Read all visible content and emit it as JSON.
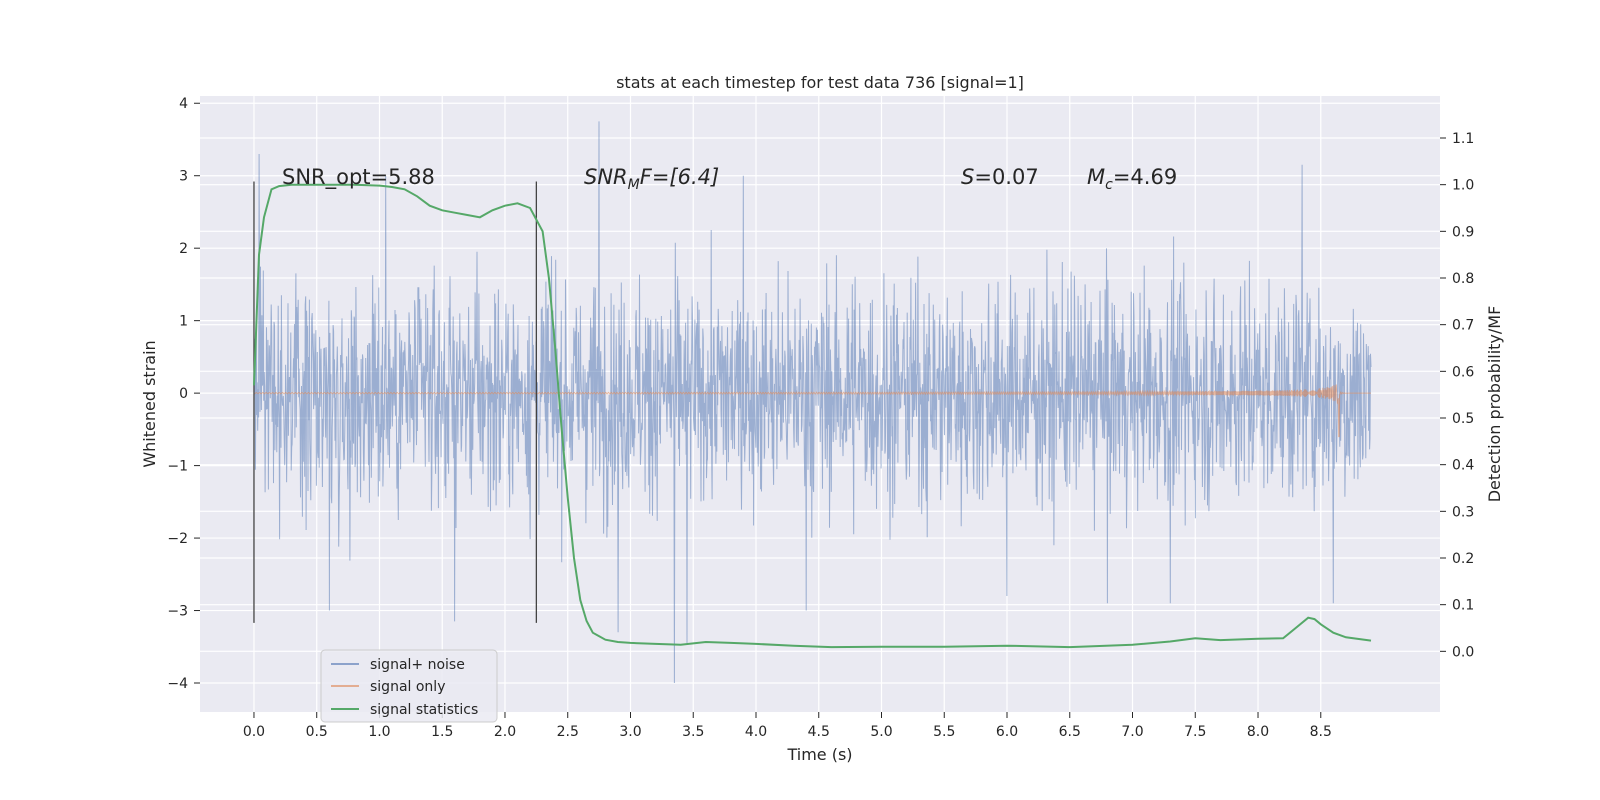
{
  "chart_data": {
    "type": "line",
    "title": "stats at each timestep for test data 736 [signal=1]",
    "xlabel": "Time (s)",
    "ylabel_left": "Whitened strain",
    "ylabel_right": "Detection probability/MF",
    "xlim": [
      -0.43,
      9.45
    ],
    "ylim_left": [
      -4.4,
      4.1
    ],
    "ylim_right": [
      -0.13,
      1.19
    ],
    "x_ticks": [
      0.0,
      0.5,
      1.0,
      1.5,
      2.0,
      2.5,
      3.0,
      3.5,
      4.0,
      4.5,
      5.0,
      5.5,
      6.0,
      6.5,
      7.0,
      7.5,
      8.0,
      8.5
    ],
    "x_tick_labels": [
      "0.0",
      "0.5",
      "1.0",
      "1.5",
      "2.0",
      "2.5",
      "3.0",
      "3.5",
      "4.0",
      "4.5",
      "5.0",
      "5.5",
      "6.0",
      "6.5",
      "7.0",
      "7.5",
      "8.0",
      "8.5"
    ],
    "y_left_ticks": [
      -4,
      -3,
      -2,
      -1,
      0,
      1,
      2,
      3,
      4
    ],
    "y_left_tick_labels": [
      "−4",
      "−3",
      "−2",
      "−1",
      "0",
      "1",
      "2",
      "3",
      "4"
    ],
    "y_right_ticks": [
      0.0,
      0.1,
      0.2,
      0.3,
      0.4,
      0.5,
      0.6,
      0.7,
      0.8,
      0.9,
      1.0,
      1.1
    ],
    "y_right_tick_labels": [
      "0.0",
      "0.1",
      "0.2",
      "0.3",
      "0.4",
      "0.5",
      "0.6",
      "0.7",
      "0.8",
      "0.9",
      "1.0",
      "1.1"
    ],
    "grid": true,
    "legend_position": "lower-left",
    "series": [
      {
        "name": "signal+ noise",
        "color": "#4c72b0",
        "style": "noise",
        "t_range": [
          0.0,
          8.9
        ],
        "sigma": 0.75,
        "envelope": [
          1.7,
          -1.8
        ],
        "spikes": [
          [
            0.04,
            3.3
          ],
          [
            0.6,
            -3.0
          ],
          [
            1.6,
            -3.15
          ],
          [
            2.75,
            3.75
          ],
          [
            3.35,
            -4.0
          ],
          [
            3.45,
            -3.45
          ],
          [
            2.9,
            -3.3
          ],
          [
            3.9,
            3.0
          ],
          [
            4.4,
            -3.0
          ],
          [
            6.0,
            -2.8
          ],
          [
            6.8,
            -2.9
          ],
          [
            8.35,
            3.15
          ],
          [
            8.6,
            -2.9
          ],
          [
            7.3,
            -2.9
          ],
          [
            1.05,
            3.0
          ]
        ]
      },
      {
        "name": "signal only",
        "color": "#dd8452",
        "style": "chirp",
        "t_range": [
          0.0,
          8.9
        ],
        "merger_time": 8.65,
        "peak_amplitude": 0.5,
        "min_amplitude": -0.6
      },
      {
        "name": "signal statistics",
        "color": "#55a868",
        "style": "line",
        "axis": "right",
        "x": [
          0.0,
          0.04,
          0.08,
          0.14,
          0.2,
          0.3,
          0.4,
          0.6,
          0.8,
          1.0,
          1.1,
          1.2,
          1.3,
          1.4,
          1.5,
          1.6,
          1.7,
          1.8,
          1.9,
          2.0,
          2.1,
          2.2,
          2.3,
          2.35,
          2.4,
          2.45,
          2.5,
          2.55,
          2.6,
          2.65,
          2.7,
          2.8,
          2.9,
          3.0,
          3.2,
          3.4,
          3.6,
          3.8,
          4.0,
          4.3,
          4.6,
          5.0,
          5.5,
          6.0,
          6.5,
          7.0,
          7.3,
          7.5,
          7.7,
          8.0,
          8.2,
          8.3,
          8.4,
          8.45,
          8.5,
          8.6,
          8.7,
          8.9
        ],
        "y": [
          0.57,
          0.85,
          0.93,
          0.99,
          0.997,
          1.0,
          1.0,
          1.0,
          1.0,
          0.998,
          0.995,
          0.99,
          0.975,
          0.955,
          0.945,
          0.94,
          0.935,
          0.93,
          0.945,
          0.955,
          0.96,
          0.95,
          0.9,
          0.8,
          0.65,
          0.48,
          0.33,
          0.2,
          0.11,
          0.065,
          0.04,
          0.025,
          0.02,
          0.018,
          0.016,
          0.014,
          0.02,
          0.018,
          0.016,
          0.012,
          0.009,
          0.01,
          0.01,
          0.012,
          0.009,
          0.014,
          0.021,
          0.028,
          0.024,
          0.027,
          0.028,
          0.05,
          0.072,
          0.069,
          0.058,
          0.04,
          0.03,
          0.023
        ]
      }
    ],
    "vlines": [
      {
        "name": "start",
        "x": 0.0,
        "y_range": [
          -3.17,
          2.92
        ]
      },
      {
        "name": "detection",
        "x": 2.25,
        "y_range": [
          -3.17,
          2.92
        ]
      }
    ],
    "annotations": [
      {
        "name": "snr-opt",
        "x": 0.2,
        "y": 2.9,
        "text": "SNR_opt=5.88"
      },
      {
        "name": "snr-mf",
        "x": 2.6,
        "y": 2.9,
        "base": "SNR",
        "sub": "M",
        "rest": "F=[6.4]"
      },
      {
        "name": "s-value",
        "x": 5.6,
        "y": 2.9,
        "base": "S",
        "rest": "=0.07"
      },
      {
        "name": "chirp-mass",
        "x": 6.6,
        "y": 2.9,
        "base": "M",
        "sub": "c",
        "rest": "=4.69"
      }
    ]
  }
}
